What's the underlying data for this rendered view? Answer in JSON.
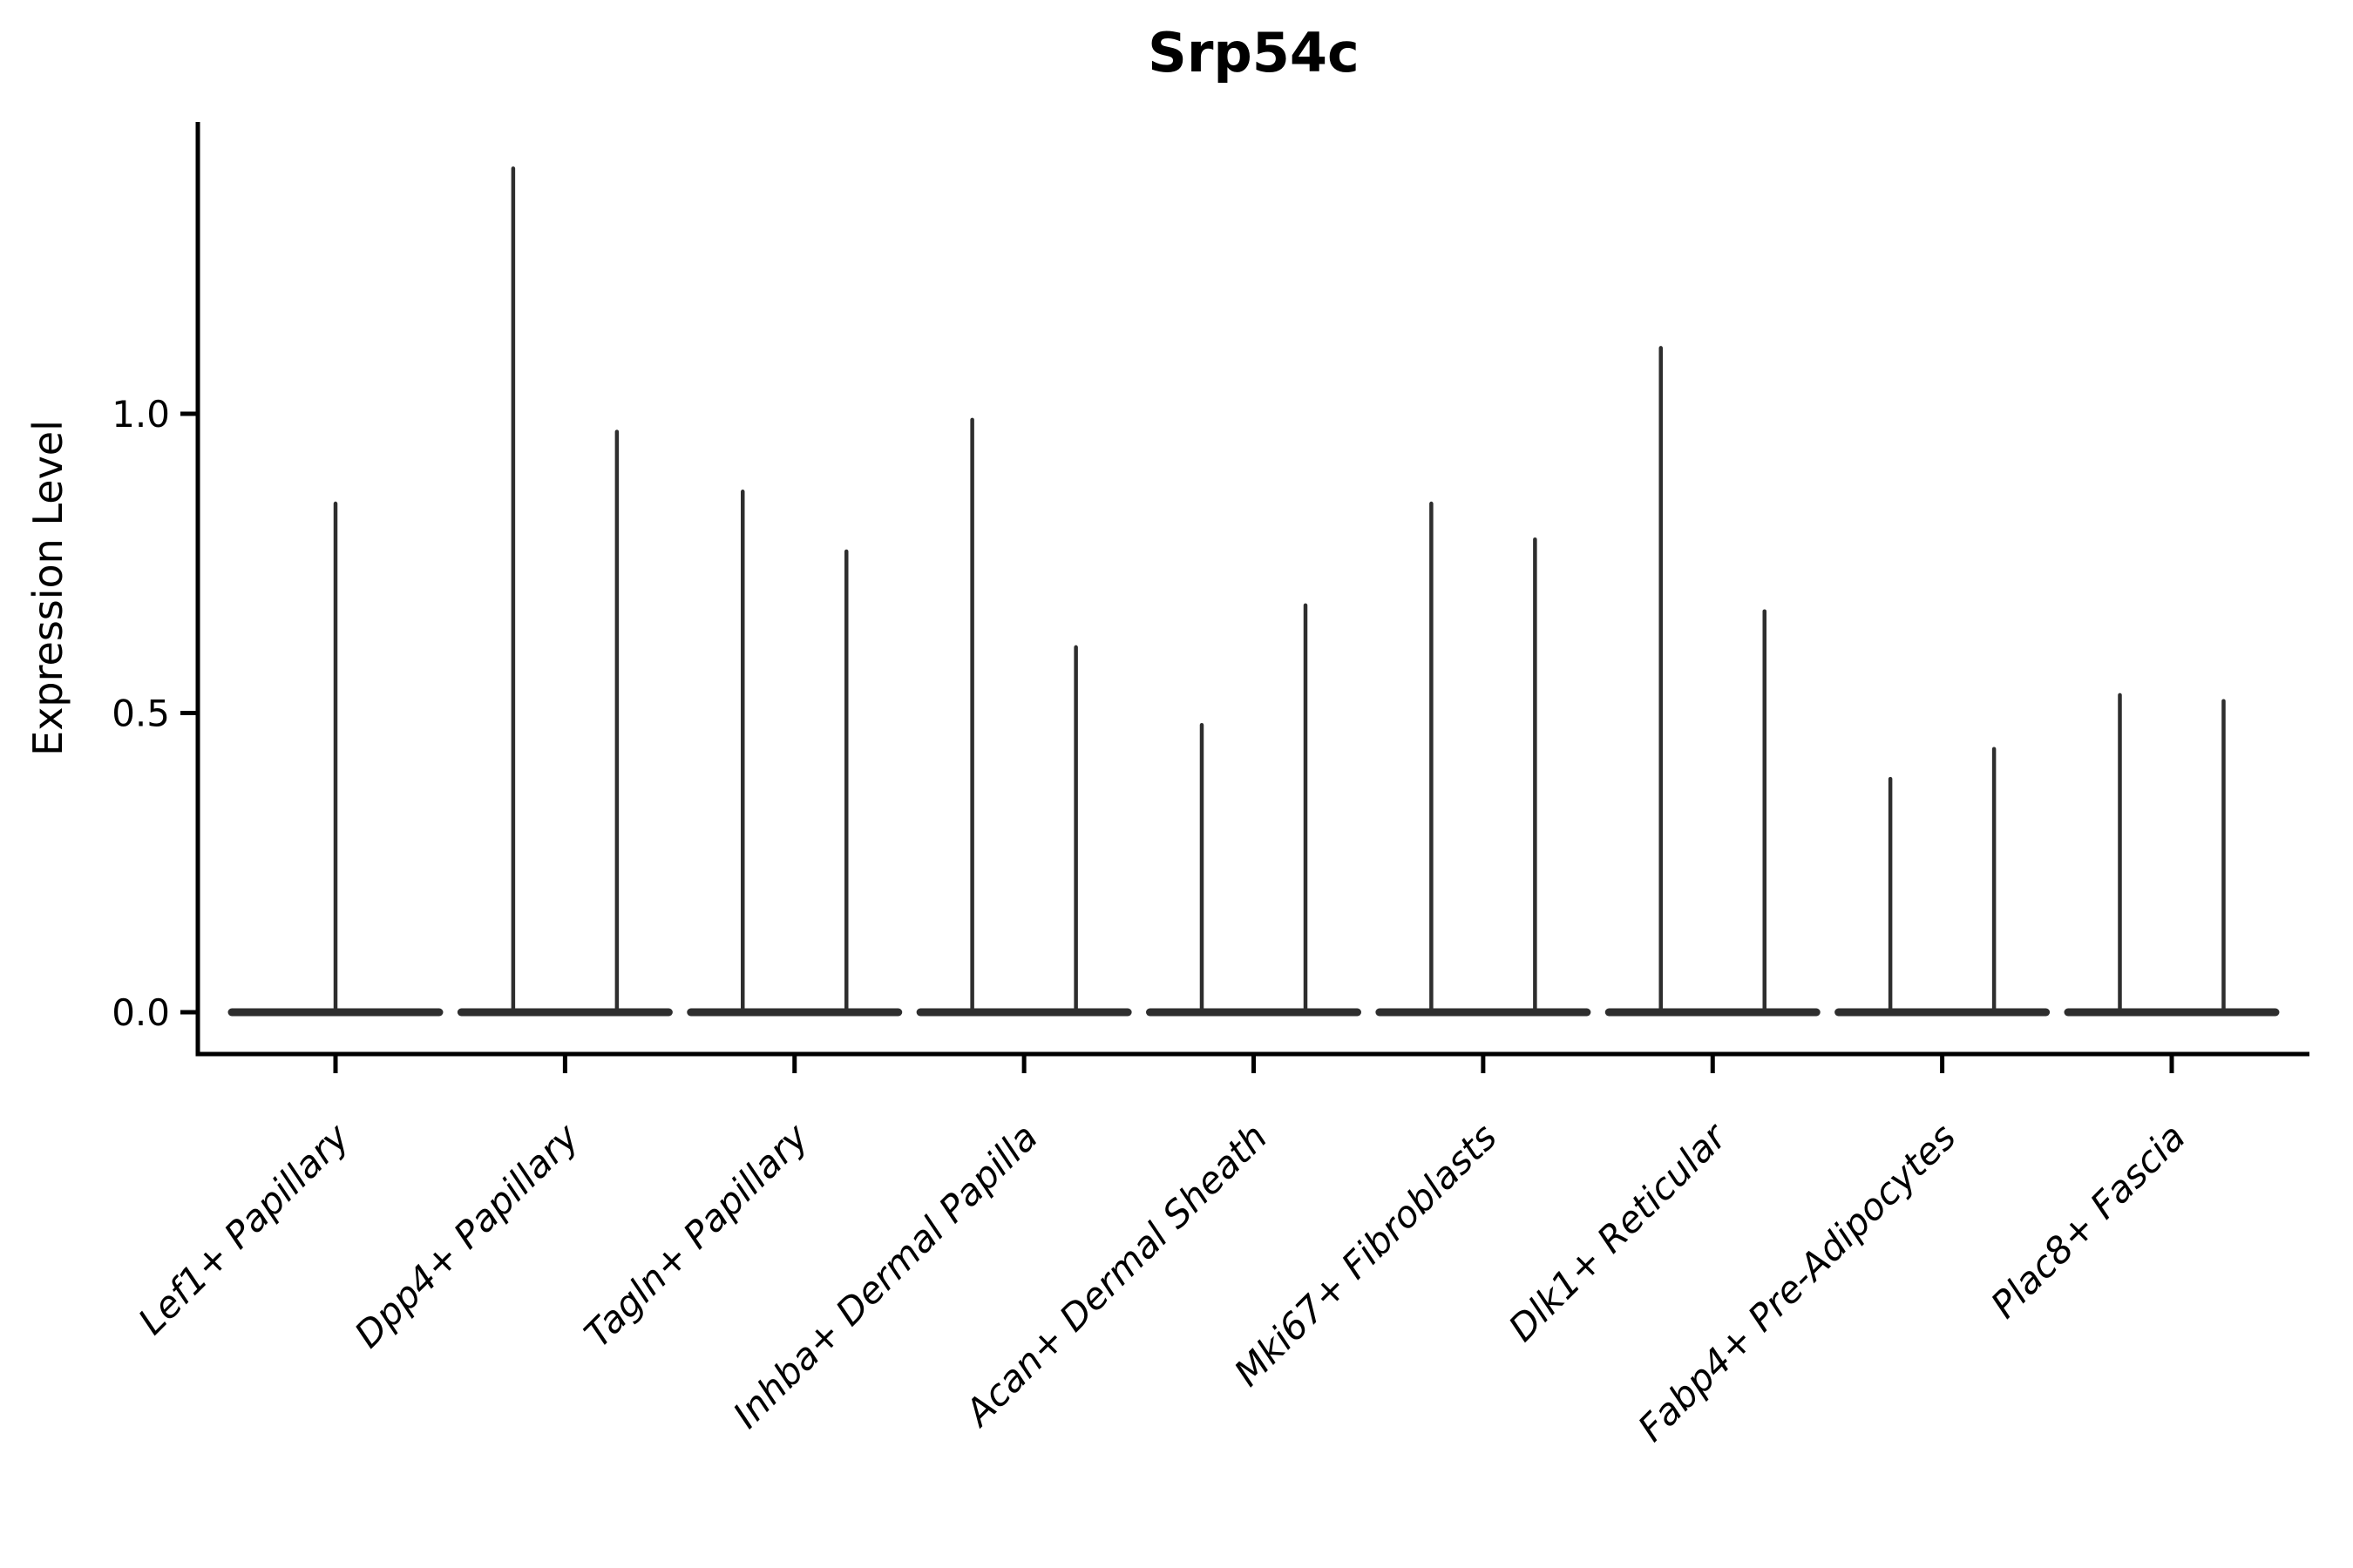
{
  "figure": {
    "background": "#ffffff"
  },
  "chart_data": {
    "type": "violin",
    "title": "Srp54c",
    "ylabel": "Expression Level",
    "xlabel": "",
    "grid": false,
    "legend_position": "none",
    "ylim": [
      -0.07,
      1.49
    ],
    "yticks": [
      {
        "value": 0.0,
        "label": "0.0"
      },
      {
        "value": 0.5,
        "label": "0.5"
      },
      {
        "value": 1.0,
        "label": "1.0"
      }
    ],
    "categories": [
      "Lef1+ Papillary",
      "Dpp4+ Papillary",
      "Tagln+ Papillary",
      "Inhba+ Dermal Papilla",
      "Acan+ Dermal Sheath",
      "Mki67+ Fibroblasts",
      "Dlk1+ Reticular",
      "Fabp4+ Pre-Adipocytes",
      "Plac8+ Fascia"
    ],
    "violins": [
      {
        "category": "Lef1+ Papillary",
        "spikes": [
          {
            "position": "center",
            "max_expression": 0.85
          }
        ]
      },
      {
        "category": "Dpp4+ Papillary",
        "spikes": [
          {
            "position": "left",
            "max_expression": 1.41
          },
          {
            "position": "right",
            "max_expression": 0.97
          }
        ]
      },
      {
        "category": "Tagln+ Papillary",
        "spikes": [
          {
            "position": "left",
            "max_expression": 0.87
          },
          {
            "position": "right",
            "max_expression": 0.77
          }
        ]
      },
      {
        "category": "Inhba+ Dermal Papilla",
        "spikes": [
          {
            "position": "left",
            "max_expression": 0.99
          },
          {
            "position": "right",
            "max_expression": 0.61
          }
        ]
      },
      {
        "category": "Acan+ Dermal Sheath",
        "spikes": [
          {
            "position": "left",
            "max_expression": 0.48
          },
          {
            "position": "right",
            "max_expression": 0.68
          }
        ]
      },
      {
        "category": "Mki67+ Fibroblasts",
        "spikes": [
          {
            "position": "left",
            "max_expression": 0.85
          },
          {
            "position": "right",
            "max_expression": 0.79
          }
        ]
      },
      {
        "category": "Dlk1+ Reticular",
        "spikes": [
          {
            "position": "left",
            "max_expression": 1.11
          },
          {
            "position": "right",
            "max_expression": 0.67
          }
        ]
      },
      {
        "category": "Fabp4+ Pre-Adipocytes",
        "spikes": [
          {
            "position": "left",
            "max_expression": 0.39
          },
          {
            "position": "right",
            "max_expression": 0.44
          }
        ]
      },
      {
        "category": "Plac8+ Fascia",
        "spikes": [
          {
            "position": "left",
            "max_expression": 0.53
          },
          {
            "position": "right",
            "max_expression": 0.52
          }
        ]
      }
    ],
    "colors": {
      "violin": "#2e2e2e",
      "axis": "#000000",
      "text": "#000000",
      "background": "#ffffff"
    }
  }
}
